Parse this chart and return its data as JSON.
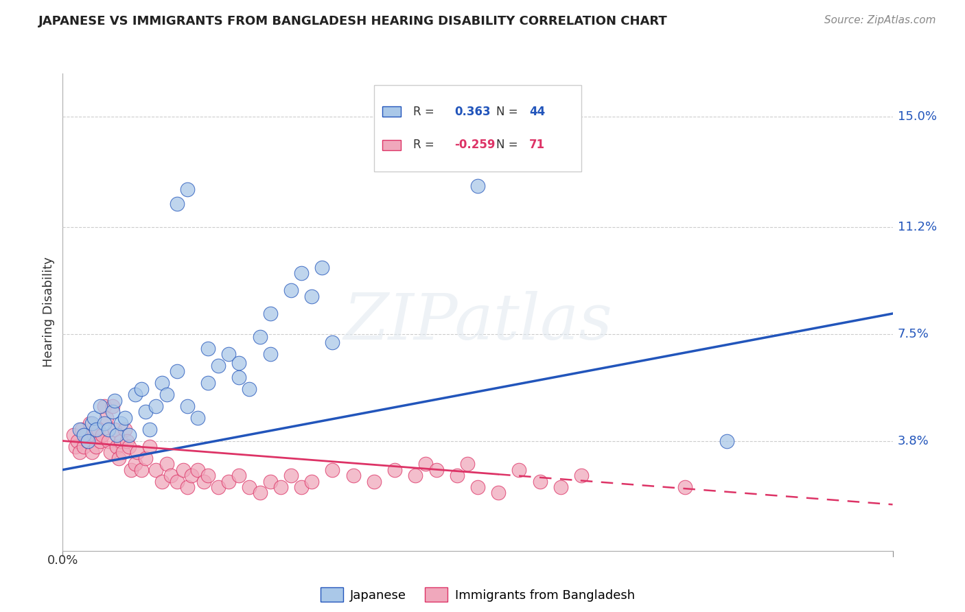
{
  "title": "JAPANESE VS IMMIGRANTS FROM BANGLADESH HEARING DISABILITY CORRELATION CHART",
  "source": "Source: ZipAtlas.com",
  "ylabel": "Hearing Disability",
  "ytick_labels": [
    "15.0%",
    "11.2%",
    "7.5%",
    "3.8%"
  ],
  "ytick_values": [
    0.15,
    0.112,
    0.075,
    0.038
  ],
  "xlim": [
    0.0,
    0.4
  ],
  "ylim": [
    0.0,
    0.165
  ],
  "blue_color": "#aac8e8",
  "pink_color": "#f0a8bc",
  "trendline_blue": "#2255bb",
  "trendline_pink": "#dd3366",
  "watermark_text": "ZIPatlas",
  "legend_r1": "0.363",
  "legend_n1": "44",
  "legend_r2": "-0.259",
  "legend_n2": "71",
  "blue_scatter": [
    [
      0.008,
      0.042
    ],
    [
      0.01,
      0.04
    ],
    [
      0.012,
      0.038
    ],
    [
      0.014,
      0.044
    ],
    [
      0.015,
      0.046
    ],
    [
      0.016,
      0.042
    ],
    [
      0.018,
      0.05
    ],
    [
      0.02,
      0.044
    ],
    [
      0.022,
      0.042
    ],
    [
      0.024,
      0.048
    ],
    [
      0.025,
      0.052
    ],
    [
      0.026,
      0.04
    ],
    [
      0.028,
      0.044
    ],
    [
      0.03,
      0.046
    ],
    [
      0.032,
      0.04
    ],
    [
      0.035,
      0.054
    ],
    [
      0.038,
      0.056
    ],
    [
      0.04,
      0.048
    ],
    [
      0.042,
      0.042
    ],
    [
      0.045,
      0.05
    ],
    [
      0.048,
      0.058
    ],
    [
      0.05,
      0.054
    ],
    [
      0.055,
      0.062
    ],
    [
      0.06,
      0.05
    ],
    [
      0.065,
      0.046
    ],
    [
      0.07,
      0.058
    ],
    [
      0.075,
      0.064
    ],
    [
      0.08,
      0.068
    ],
    [
      0.085,
      0.06
    ],
    [
      0.09,
      0.056
    ],
    [
      0.095,
      0.074
    ],
    [
      0.1,
      0.068
    ],
    [
      0.11,
      0.09
    ],
    [
      0.115,
      0.096
    ],
    [
      0.12,
      0.088
    ],
    [
      0.125,
      0.098
    ],
    [
      0.13,
      0.072
    ],
    [
      0.06,
      0.125
    ],
    [
      0.085,
      0.065
    ],
    [
      0.055,
      0.12
    ],
    [
      0.1,
      0.082
    ],
    [
      0.2,
      0.126
    ],
    [
      0.32,
      0.038
    ],
    [
      0.07,
      0.07
    ]
  ],
  "pink_scatter": [
    [
      0.005,
      0.04
    ],
    [
      0.006,
      0.036
    ],
    [
      0.007,
      0.038
    ],
    [
      0.008,
      0.034
    ],
    [
      0.009,
      0.042
    ],
    [
      0.01,
      0.036
    ],
    [
      0.011,
      0.04
    ],
    [
      0.012,
      0.038
    ],
    [
      0.013,
      0.044
    ],
    [
      0.014,
      0.034
    ],
    [
      0.015,
      0.04
    ],
    [
      0.016,
      0.036
    ],
    [
      0.017,
      0.042
    ],
    [
      0.018,
      0.038
    ],
    [
      0.019,
      0.04
    ],
    [
      0.02,
      0.05
    ],
    [
      0.021,
      0.046
    ],
    [
      0.022,
      0.038
    ],
    [
      0.023,
      0.034
    ],
    [
      0.024,
      0.05
    ],
    [
      0.025,
      0.042
    ],
    [
      0.026,
      0.036
    ],
    [
      0.027,
      0.032
    ],
    [
      0.028,
      0.038
    ],
    [
      0.029,
      0.034
    ],
    [
      0.03,
      0.042
    ],
    [
      0.031,
      0.038
    ],
    [
      0.032,
      0.036
    ],
    [
      0.033,
      0.028
    ],
    [
      0.035,
      0.03
    ],
    [
      0.036,
      0.034
    ],
    [
      0.038,
      0.028
    ],
    [
      0.04,
      0.032
    ],
    [
      0.042,
      0.036
    ],
    [
      0.045,
      0.028
    ],
    [
      0.048,
      0.024
    ],
    [
      0.05,
      0.03
    ],
    [
      0.052,
      0.026
    ],
    [
      0.055,
      0.024
    ],
    [
      0.058,
      0.028
    ],
    [
      0.06,
      0.022
    ],
    [
      0.062,
      0.026
    ],
    [
      0.065,
      0.028
    ],
    [
      0.068,
      0.024
    ],
    [
      0.07,
      0.026
    ],
    [
      0.075,
      0.022
    ],
    [
      0.08,
      0.024
    ],
    [
      0.085,
      0.026
    ],
    [
      0.09,
      0.022
    ],
    [
      0.095,
      0.02
    ],
    [
      0.1,
      0.024
    ],
    [
      0.105,
      0.022
    ],
    [
      0.11,
      0.026
    ],
    [
      0.115,
      0.022
    ],
    [
      0.12,
      0.024
    ],
    [
      0.13,
      0.028
    ],
    [
      0.14,
      0.026
    ],
    [
      0.15,
      0.024
    ],
    [
      0.16,
      0.028
    ],
    [
      0.17,
      0.026
    ],
    [
      0.175,
      0.03
    ],
    [
      0.18,
      0.028
    ],
    [
      0.19,
      0.026
    ],
    [
      0.195,
      0.03
    ],
    [
      0.2,
      0.022
    ],
    [
      0.21,
      0.02
    ],
    [
      0.22,
      0.028
    ],
    [
      0.23,
      0.024
    ],
    [
      0.24,
      0.022
    ],
    [
      0.25,
      0.026
    ],
    [
      0.3,
      0.022
    ]
  ],
  "blue_trendline": [
    [
      0.0,
      0.028
    ],
    [
      0.4,
      0.082
    ]
  ],
  "pink_trendline": [
    [
      0.0,
      0.038
    ],
    [
      0.4,
      0.016
    ]
  ]
}
